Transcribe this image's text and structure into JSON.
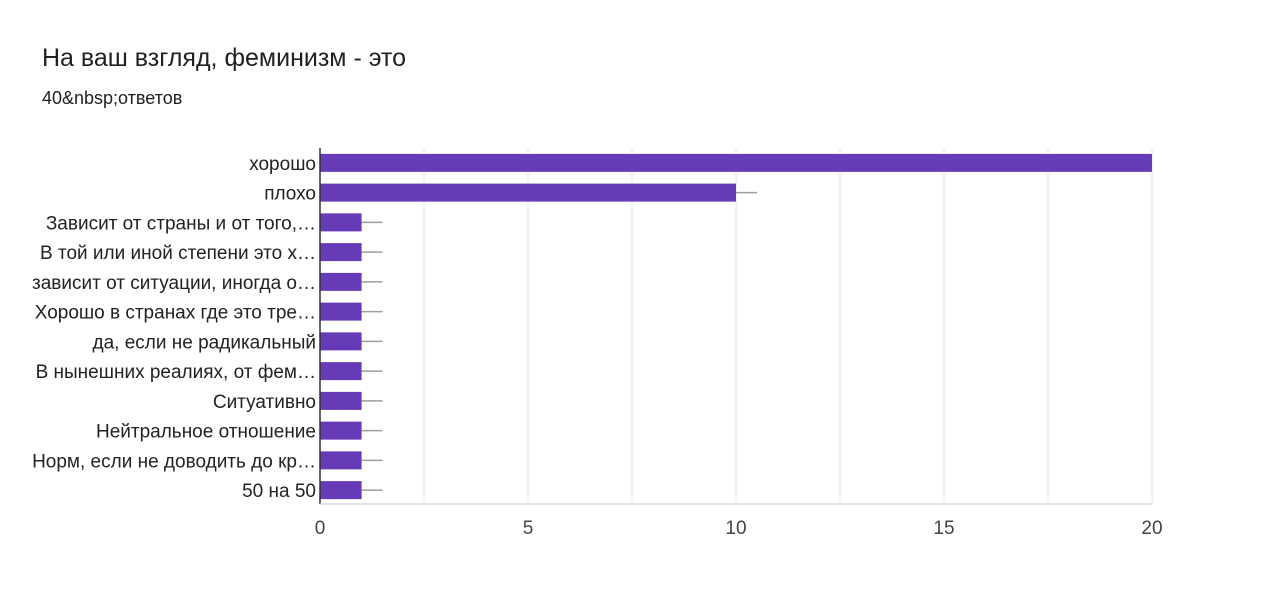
{
  "question": {
    "title": "На ваш взгляд, феминизм - это",
    "responses": "40&nbsp;ответов"
  },
  "colors": {
    "bar": "#673ab7",
    "grid": "#e6e6e6",
    "axis": "#333333",
    "whisker": "#9e9e9e"
  },
  "chart_data": {
    "type": "bar",
    "orientation": "horizontal",
    "categories": [
      "хорошо",
      "плохо",
      "Зависит от страны и от того,…",
      "В той или иной степени это х…",
      "зависит от ситуации, иногда о…",
      "Хорошо в странах где это тре…",
      "да, если не радикальный",
      "В нынешних реалиях, от фем…",
      "Ситуативно",
      "Нейтральное отношение",
      "Норм, если не доводить до кр…",
      "50 на 50"
    ],
    "values": [
      20,
      10,
      1,
      1,
      1,
      1,
      1,
      1,
      1,
      1,
      1,
      1
    ],
    "xlim": [
      0,
      20
    ],
    "xticks": [
      0,
      5,
      10,
      15,
      20
    ],
    "grid": true
  }
}
